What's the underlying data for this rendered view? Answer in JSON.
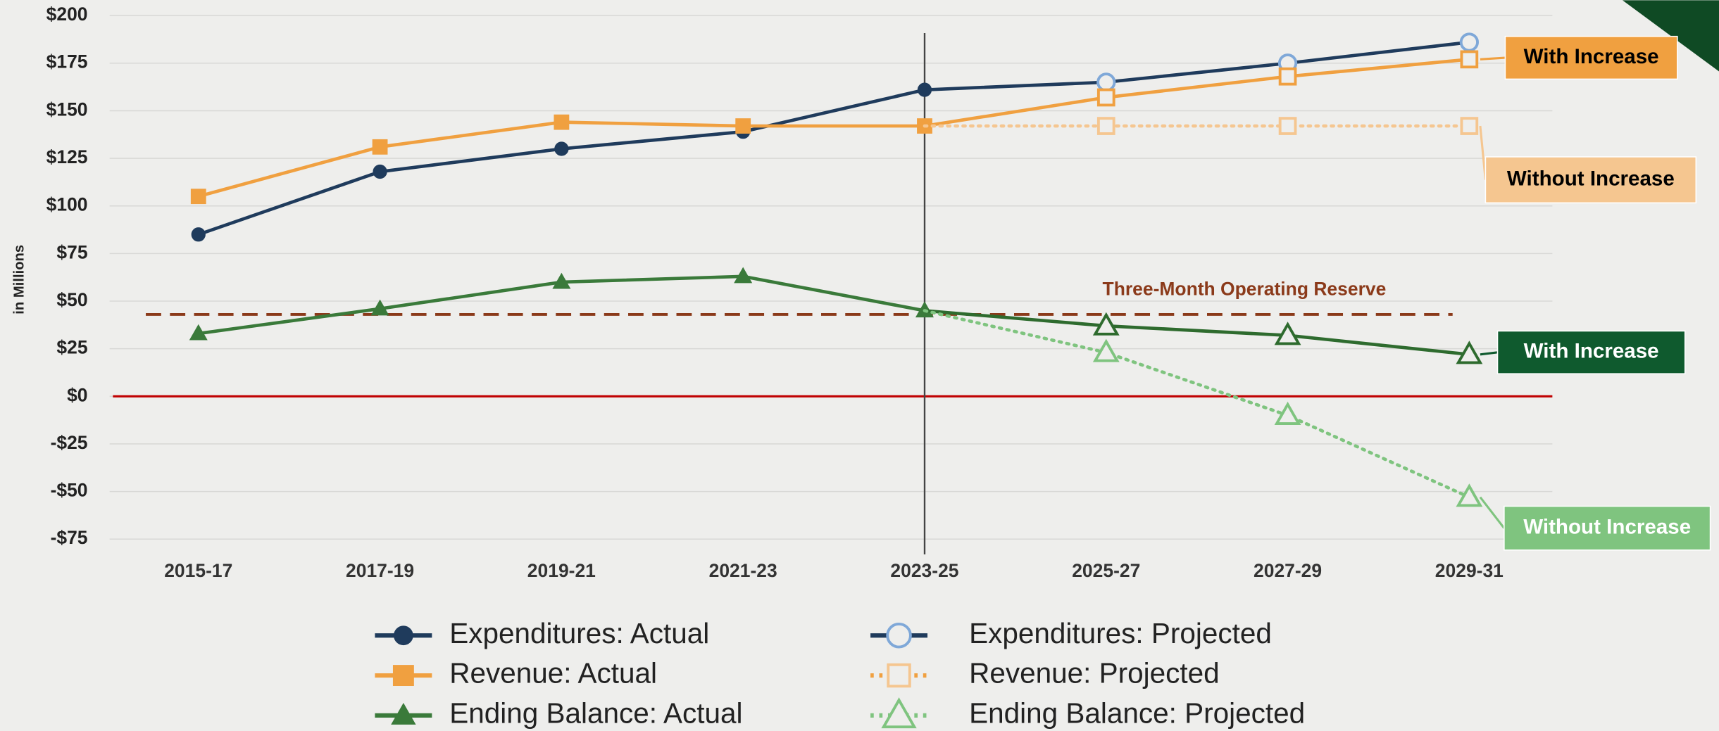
{
  "chart_data": {
    "type": "line",
    "ylabel": "in Millions",
    "categories": [
      "2015-17",
      "2017-19",
      "2019-21",
      "2021-23",
      "2023-25",
      "2025-27",
      "2027-29",
      "2029-31"
    ],
    "ylim": [
      -75,
      200
    ],
    "yticks": [
      {
        "value": 200,
        "label": "$200"
      },
      {
        "value": 175,
        "label": "$175"
      },
      {
        "value": 150,
        "label": "$150"
      },
      {
        "value": 125,
        "label": "$125"
      },
      {
        "value": 100,
        "label": "$100"
      },
      {
        "value": 75,
        "label": "$75"
      },
      {
        "value": 50,
        "label": "$50"
      },
      {
        "value": 25,
        "label": "$25"
      },
      {
        "value": 0,
        "label": "$0"
      },
      {
        "value": -25,
        "label": "-$25"
      },
      {
        "value": -50,
        "label": "-$50"
      },
      {
        "value": -75,
        "label": "-$75"
      }
    ],
    "grid": true,
    "zero_line_color": "#c00000",
    "divider_category": 4,
    "reserve": {
      "label": "Three-Month Operating Reserve",
      "value": 43,
      "color": "#8b3a1a"
    },
    "series": [
      {
        "name": "Expenditures: Actual",
        "color": "#1f3b5c",
        "marker": "circle",
        "filled": true,
        "dash": "solid",
        "values": [
          85,
          118,
          130,
          139,
          161,
          null,
          null,
          null
        ]
      },
      {
        "name": "Expenditures: Projected",
        "color": "#1f3b5c",
        "marker_color": "#7fa8d8",
        "marker": "circle",
        "filled": false,
        "dash": "solid",
        "values": [
          null,
          null,
          null,
          null,
          161,
          165,
          175,
          186
        ]
      },
      {
        "name": "Revenue: Actual",
        "color": "#f0a040",
        "marker": "square",
        "filled": true,
        "dash": "solid",
        "values": [
          105,
          131,
          144,
          142,
          142,
          null,
          null,
          null
        ]
      },
      {
        "name": "Revenue: Projected",
        "color": "#f0a040",
        "marker_color": "#f5c690",
        "marker": "square",
        "filled": false,
        "dash": "dotted",
        "scenarios": [
          {
            "label": "With Increase",
            "color": "#f0a040",
            "dash": "solid",
            "label_fill": "#f0a040",
            "label_color": "#000000",
            "values": [
              null,
              null,
              null,
              null,
              142,
              157,
              168,
              177
            ]
          },
          {
            "label": "Without Increase",
            "color": "#f5c690",
            "dash": "dotted",
            "label_fill": "#f5c690",
            "label_color": "#000000",
            "values": [
              null,
              null,
              null,
              null,
              142,
              142,
              142,
              142
            ]
          }
        ]
      },
      {
        "name": "Ending Balance: Actual",
        "color": "#3a7a3a",
        "marker": "triangle",
        "filled": true,
        "dash": "solid",
        "values": [
          33,
          46,
          60,
          63,
          45,
          null,
          null,
          null
        ]
      },
      {
        "name": "Ending Balance: Projected",
        "color": "#7fc47f",
        "marker_color": "#7fc47f",
        "marker": "triangle",
        "filled": false,
        "dash": "dotted",
        "scenarios": [
          {
            "label": "With Increase",
            "color": "#2e6b2e",
            "dash": "solid",
            "label_fill": "#0f5a2e",
            "label_color": "#ffffff",
            "values": [
              null,
              null,
              null,
              null,
              45,
              37,
              32,
              22
            ]
          },
          {
            "label": "Without Increase",
            "color": "#7fc47f",
            "dash": "dotted",
            "label_fill": "#7fc47f",
            "label_color": "#ffffff",
            "values": [
              null,
              null,
              null,
              null,
              45,
              23,
              -10,
              -53
            ]
          }
        ]
      }
    ]
  }
}
